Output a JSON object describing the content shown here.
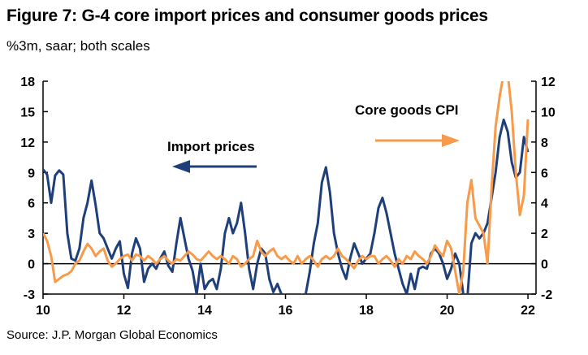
{
  "header": {
    "title": "Figure 7: G-4 core import prices and consumer goods prices",
    "subtitle": "%3m, saar; both scales"
  },
  "footer": {
    "source": "Source: J.P. Morgan Global Economics"
  },
  "colors": {
    "import": "#1f3f7a",
    "goods": "#f79a4a",
    "axis": "#000000"
  },
  "chart_data": {
    "type": "line",
    "title": "G-4 core import prices and consumer goods prices",
    "xlabel": "",
    "ylabel": "",
    "xlim": [
      2010,
      2022.2
    ],
    "ylim_left": [
      -3,
      18
    ],
    "ylim_right": [
      -2,
      12
    ],
    "x_ticks": [
      10,
      12,
      14,
      16,
      18,
      20,
      22
    ],
    "y_ticks_left": [
      18,
      15,
      12,
      9,
      6,
      3,
      0,
      -3
    ],
    "y_ticks_right": [
      12,
      10,
      8,
      6,
      4,
      2,
      0,
      -2
    ],
    "annotations": [
      {
        "text": "Import prices",
        "arrow": "left"
      },
      {
        "text": "Core goods CPI",
        "arrow": "right"
      }
    ],
    "series": [
      {
        "name": "Import prices",
        "axis": "left",
        "points": [
          [
            2010.0,
            9.3
          ],
          [
            2010.1,
            8.8
          ],
          [
            2010.2,
            6.0
          ],
          [
            2010.3,
            8.7
          ],
          [
            2010.4,
            9.2
          ],
          [
            2010.5,
            8.8
          ],
          [
            2010.6,
            3.0
          ],
          [
            2010.7,
            0.5
          ],
          [
            2010.8,
            0.3
          ],
          [
            2010.9,
            1.5
          ],
          [
            2011.0,
            4.5
          ],
          [
            2011.1,
            6.0
          ],
          [
            2011.2,
            8.2
          ],
          [
            2011.3,
            5.8
          ],
          [
            2011.4,
            3.0
          ],
          [
            2011.5,
            2.5
          ],
          [
            2011.6,
            1.5
          ],
          [
            2011.7,
            0.5
          ],
          [
            2011.8,
            1.5
          ],
          [
            2011.9,
            2.2
          ],
          [
            2012.0,
            -1.0
          ],
          [
            2012.1,
            -2.4
          ],
          [
            2012.2,
            1.0
          ],
          [
            2012.3,
            2.5
          ],
          [
            2012.4,
            1.5
          ],
          [
            2012.5,
            -1.8
          ],
          [
            2012.6,
            -0.5
          ],
          [
            2012.7,
            0.0
          ],
          [
            2012.8,
            -0.5
          ],
          [
            2012.9,
            0.5
          ],
          [
            2013.0,
            1.2
          ],
          [
            2013.1,
            -0.2
          ],
          [
            2013.2,
            -0.8
          ],
          [
            2013.3,
            2.0
          ],
          [
            2013.4,
            4.5
          ],
          [
            2013.5,
            2.5
          ],
          [
            2013.6,
            0.5
          ],
          [
            2013.7,
            -0.7
          ],
          [
            2013.8,
            -3.0
          ],
          [
            2013.9,
            0.0
          ],
          [
            2014.0,
            -2.5
          ],
          [
            2014.1,
            -1.8
          ],
          [
            2014.2,
            -1.5
          ],
          [
            2014.3,
            -2.5
          ],
          [
            2014.4,
            -0.5
          ],
          [
            2014.5,
            3.0
          ],
          [
            2014.6,
            4.5
          ],
          [
            2014.7,
            3.0
          ],
          [
            2014.8,
            4.0
          ],
          [
            2014.9,
            6.0
          ],
          [
            2015.0,
            3.0
          ],
          [
            2015.1,
            -0.5
          ],
          [
            2015.2,
            -2.5
          ],
          [
            2015.3,
            0.0
          ],
          [
            2015.4,
            1.5
          ],
          [
            2015.5,
            1.0
          ],
          [
            2015.6,
            -1.5
          ],
          [
            2015.7,
            -2.8
          ],
          [
            2015.8,
            -2.0
          ],
          [
            2015.9,
            -3.0
          ],
          [
            2016.0,
            -3.1
          ],
          [
            2016.1,
            -3.2
          ],
          [
            2016.2,
            -3.5
          ],
          [
            2016.3,
            -3.2
          ],
          [
            2016.4,
            -3.1
          ],
          [
            2016.5,
            -3.0
          ],
          [
            2016.6,
            -0.8
          ],
          [
            2016.7,
            2.0
          ],
          [
            2016.8,
            4.0
          ],
          [
            2016.9,
            8.0
          ],
          [
            2017.0,
            9.5
          ],
          [
            2017.1,
            7.0
          ],
          [
            2017.2,
            3.0
          ],
          [
            2017.3,
            1.0
          ],
          [
            2017.4,
            -0.5
          ],
          [
            2017.5,
            -1.5
          ],
          [
            2017.6,
            0.5
          ],
          [
            2017.7,
            2.0
          ],
          [
            2017.8,
            1.0
          ],
          [
            2017.9,
            0.0
          ],
          [
            2018.0,
            0.5
          ],
          [
            2018.1,
            1.0
          ],
          [
            2018.2,
            3.0
          ],
          [
            2018.3,
            5.5
          ],
          [
            2018.4,
            6.5
          ],
          [
            2018.5,
            5.0
          ],
          [
            2018.6,
            3.0
          ],
          [
            2018.7,
            1.0
          ],
          [
            2018.8,
            -0.5
          ],
          [
            2018.9,
            -2.0
          ],
          [
            2019.0,
            -3.0
          ],
          [
            2019.1,
            -1.0
          ],
          [
            2019.2,
            -2.5
          ],
          [
            2019.3,
            -0.5
          ],
          [
            2019.4,
            -0.3
          ],
          [
            2019.5,
            -0.5
          ],
          [
            2019.6,
            1.0
          ],
          [
            2019.7,
            1.5
          ],
          [
            2019.8,
            1.0
          ],
          [
            2019.9,
            0.0
          ],
          [
            2020.0,
            -1.5
          ],
          [
            2020.1,
            -0.5
          ],
          [
            2020.2,
            1.0
          ],
          [
            2020.3,
            0.0
          ],
          [
            2020.4,
            -3.0
          ],
          [
            2020.5,
            -3.5
          ],
          [
            2020.6,
            2.0
          ],
          [
            2020.7,
            3.0
          ],
          [
            2020.8,
            2.5
          ],
          [
            2020.9,
            3.0
          ],
          [
            2021.0,
            4.0
          ],
          [
            2021.1,
            6.5
          ],
          [
            2021.2,
            9.0
          ],
          [
            2021.3,
            12.5
          ],
          [
            2021.4,
            14.2
          ],
          [
            2021.5,
            13.0
          ],
          [
            2021.6,
            10.0
          ],
          [
            2021.7,
            8.5
          ],
          [
            2021.8,
            9.0
          ],
          [
            2021.9,
            12.5
          ],
          [
            2022.0,
            11.0
          ]
        ]
      },
      {
        "name": "Core goods CPI",
        "axis": "right",
        "points": [
          [
            2010.0,
            2.0
          ],
          [
            2010.1,
            1.5
          ],
          [
            2010.2,
            0.5
          ],
          [
            2010.3,
            -1.2
          ],
          [
            2010.4,
            -1.0
          ],
          [
            2010.5,
            -0.8
          ],
          [
            2010.6,
            -0.7
          ],
          [
            2010.7,
            -0.5
          ],
          [
            2010.8,
            0.0
          ],
          [
            2010.9,
            0.2
          ],
          [
            2011.0,
            0.8
          ],
          [
            2011.1,
            1.3
          ],
          [
            2011.2,
            1.0
          ],
          [
            2011.3,
            0.5
          ],
          [
            2011.4,
            0.8
          ],
          [
            2011.5,
            1.0
          ],
          [
            2011.6,
            0.2
          ],
          [
            2011.7,
            -0.2
          ],
          [
            2011.8,
            0.0
          ],
          [
            2011.9,
            0.3
          ],
          [
            2012.0,
            0.5
          ],
          [
            2012.1,
            0.6
          ],
          [
            2012.2,
            0.2
          ],
          [
            2012.3,
            0.6
          ],
          [
            2012.4,
            0.5
          ],
          [
            2012.5,
            0.2
          ],
          [
            2012.6,
            0.5
          ],
          [
            2012.7,
            0.3
          ],
          [
            2012.8,
            0.0
          ],
          [
            2012.9,
            0.3
          ],
          [
            2013.0,
            0.5
          ],
          [
            2013.1,
            0.2
          ],
          [
            2013.2,
            0.0
          ],
          [
            2013.3,
            0.3
          ],
          [
            2013.4,
            0.2
          ],
          [
            2013.5,
            0.5
          ],
          [
            2013.6,
            0.8
          ],
          [
            2013.7,
            0.6
          ],
          [
            2013.8,
            0.3
          ],
          [
            2013.9,
            0.2
          ],
          [
            2014.0,
            0.5
          ],
          [
            2014.1,
            0.8
          ],
          [
            2014.2,
            0.5
          ],
          [
            2014.3,
            0.3
          ],
          [
            2014.4,
            0.5
          ],
          [
            2014.5,
            0.3
          ],
          [
            2014.6,
            0.0
          ],
          [
            2014.7,
            0.5
          ],
          [
            2014.8,
            0.3
          ],
          [
            2014.9,
            -0.2
          ],
          [
            2015.0,
            0.0
          ],
          [
            2015.1,
            0.3
          ],
          [
            2015.2,
            0.5
          ],
          [
            2015.3,
            1.5
          ],
          [
            2015.4,
            0.8
          ],
          [
            2015.5,
            0.5
          ],
          [
            2015.6,
            0.8
          ],
          [
            2015.7,
            1.0
          ],
          [
            2015.8,
            0.5
          ],
          [
            2015.9,
            0.3
          ],
          [
            2016.0,
            0.5
          ],
          [
            2016.1,
            0.2
          ],
          [
            2016.2,
            0.0
          ],
          [
            2016.3,
            0.5
          ],
          [
            2016.4,
            0.0
          ],
          [
            2016.5,
            0.3
          ],
          [
            2016.6,
            0.5
          ],
          [
            2016.7,
            0.2
          ],
          [
            2016.8,
            -0.2
          ],
          [
            2016.9,
            0.3
          ],
          [
            2017.0,
            0.5
          ],
          [
            2017.1,
            0.3
          ],
          [
            2017.2,
            0.5
          ],
          [
            2017.3,
            1.0
          ],
          [
            2017.4,
            0.5
          ],
          [
            2017.5,
            0.3
          ],
          [
            2017.6,
            0.0
          ],
          [
            2017.7,
            -0.3
          ],
          [
            2017.8,
            0.2
          ],
          [
            2017.9,
            0.5
          ],
          [
            2018.0,
            0.3
          ],
          [
            2018.1,
            0.5
          ],
          [
            2018.2,
            0.5
          ],
          [
            2018.3,
            0.0
          ],
          [
            2018.4,
            0.3
          ],
          [
            2018.5,
            0.5
          ],
          [
            2018.6,
            0.2
          ],
          [
            2018.7,
            -0.2
          ],
          [
            2018.8,
            0.3
          ],
          [
            2018.9,
            0.0
          ],
          [
            2019.0,
            0.5
          ],
          [
            2019.1,
            0.3
          ],
          [
            2019.2,
            0.8
          ],
          [
            2019.3,
            0.5
          ],
          [
            2019.4,
            0.3
          ],
          [
            2019.5,
            0.0
          ],
          [
            2019.6,
            0.5
          ],
          [
            2019.7,
            1.2
          ],
          [
            2019.8,
            0.8
          ],
          [
            2019.9,
            0.5
          ],
          [
            2020.0,
            1.5
          ],
          [
            2020.1,
            1.0
          ],
          [
            2020.2,
            -0.5
          ],
          [
            2020.3,
            -2.0
          ],
          [
            2020.4,
            -0.5
          ],
          [
            2020.5,
            4.0
          ],
          [
            2020.6,
            5.5
          ],
          [
            2020.7,
            3.0
          ],
          [
            2020.8,
            2.5
          ],
          [
            2020.9,
            2.0
          ],
          [
            2021.0,
            0.0
          ],
          [
            2021.1,
            5.0
          ],
          [
            2021.2,
            9.0
          ],
          [
            2021.3,
            11.0
          ],
          [
            2021.4,
            12.5
          ],
          [
            2021.5,
            12.5
          ],
          [
            2021.6,
            10.0
          ],
          [
            2021.7,
            6.0
          ],
          [
            2021.8,
            3.2
          ],
          [
            2021.9,
            4.5
          ],
          [
            2022.0,
            9.5
          ]
        ]
      }
    ]
  }
}
